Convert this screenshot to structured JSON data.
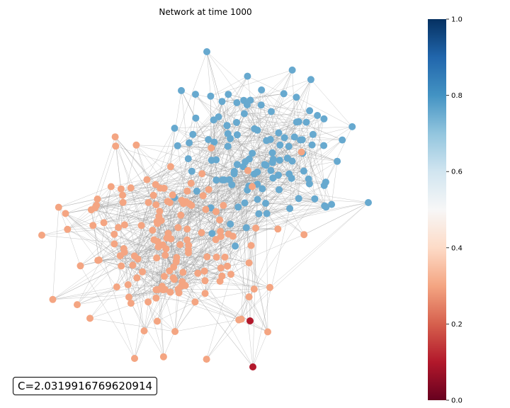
{
  "chart_data": {
    "type": "scatter",
    "title": "Network at time 1000",
    "annotation": "C=2.0319916769620914",
    "colorbar": {
      "colormap": "RdBu",
      "range": [
        0.0,
        1.0
      ],
      "ticks": [
        "0.0",
        "0.2",
        "0.4",
        "0.6",
        "0.8",
        "1.0"
      ]
    },
    "axes_visible": false,
    "node_groups": [
      {
        "value": 0.82,
        "color": "#67a9cf",
        "count": 118
      },
      {
        "value": 0.3,
        "color": "#f4a582",
        "count": 150
      },
      {
        "value": 0.05,
        "color": "#b2182b",
        "count": 2
      }
    ],
    "edge_color": "#999999"
  }
}
